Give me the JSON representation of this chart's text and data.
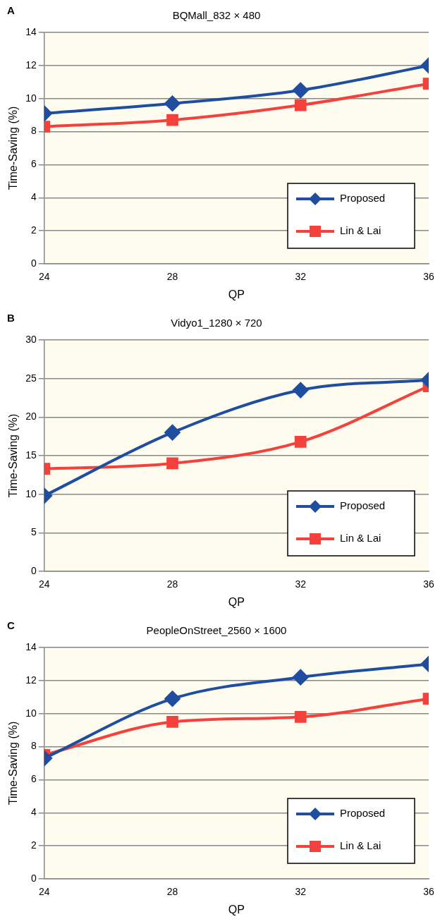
{
  "chart_data": [
    {
      "type": "line",
      "title": "BQMall_832 × 480",
      "annotations": [
        "A"
      ],
      "xlabel": "QP",
      "ylabel": "Time-Saving (%)",
      "x": [
        24,
        28,
        32,
        36
      ],
      "xlim": [
        24,
        36
      ],
      "xticks": [
        24,
        28,
        32,
        36
      ],
      "ylim": [
        0,
        14
      ],
      "yticks": [
        0,
        2,
        4,
        6,
        8,
        10,
        12,
        14
      ],
      "grid": "y",
      "legend": "bottom right",
      "series": [
        {
          "name": "Proposed",
          "color": "#1f4ea0",
          "marker": "diamond",
          "values": [
            9.1,
            9.7,
            10.5,
            12.0
          ]
        },
        {
          "name": "Lin & Lai",
          "color": "#f5413c",
          "marker": "square",
          "values": [
            8.3,
            8.7,
            9.6,
            10.9
          ]
        }
      ]
    },
    {
      "type": "line",
      "title": "Vidyo1_1280 × 720",
      "annotations": [
        "B"
      ],
      "xlabel": "QP",
      "ylabel": "Time-Saving (%)",
      "x": [
        24,
        28,
        32,
        36
      ],
      "xlim": [
        24,
        36
      ],
      "xticks": [
        24,
        28,
        32,
        36
      ],
      "ylim": [
        0,
        30
      ],
      "yticks": [
        0,
        5,
        10,
        15,
        20,
        25,
        30
      ],
      "grid": "y",
      "legend": "bottom right",
      "series": [
        {
          "name": "Proposed",
          "color": "#1f4ea0",
          "marker": "diamond",
          "values": [
            9.8,
            18.0,
            23.5,
            24.8
          ]
        },
        {
          "name": "Lin & Lai",
          "color": "#f5413c",
          "marker": "square",
          "values": [
            13.3,
            14.0,
            16.8,
            24.0
          ]
        }
      ]
    },
    {
      "type": "line",
      "title": "PeopleOnStreet_2560 × 1600",
      "annotations": [
        "C"
      ],
      "xlabel": "QP",
      "ylabel": "Time-Saving (%)",
      "x": [
        24,
        28,
        32,
        36
      ],
      "xlim": [
        24,
        36
      ],
      "xticks": [
        24,
        28,
        32,
        36
      ],
      "ylim": [
        0,
        14
      ],
      "yticks": [
        0,
        2,
        4,
        6,
        8,
        10,
        12,
        14
      ],
      "grid": "y",
      "legend": "bottom right",
      "series": [
        {
          "name": "Proposed",
          "color": "#1f4ea0",
          "marker": "diamond",
          "values": [
            7.3,
            10.9,
            12.2,
            13.0
          ]
        },
        {
          "name": "Lin & Lai",
          "color": "#f5413c",
          "marker": "square",
          "values": [
            7.5,
            9.5,
            9.8,
            10.9
          ]
        }
      ]
    }
  ]
}
